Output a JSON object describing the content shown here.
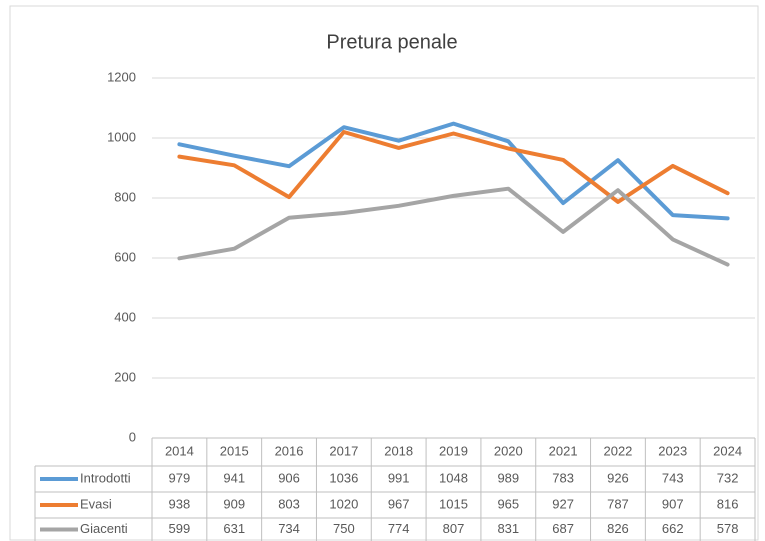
{
  "chart_data": {
    "type": "line",
    "title": "Pretura penale",
    "categories": [
      "2014",
      "2015",
      "2016",
      "2017",
      "2018",
      "2019",
      "2020",
      "2021",
      "2022",
      "2023",
      "2024"
    ],
    "series": [
      {
        "name": "Introdotti",
        "color": "#5b9bd5",
        "values": [
          979,
          941,
          906,
          1036,
          991,
          1048,
          989,
          783,
          926,
          743,
          732
        ]
      },
      {
        "name": "Evasi",
        "color": "#ed7d31",
        "values": [
          938,
          909,
          803,
          1020,
          967,
          1015,
          965,
          927,
          787,
          907,
          816
        ]
      },
      {
        "name": "Giacenti",
        "color": "#a5a5a5",
        "values": [
          599,
          631,
          734,
          750,
          774,
          807,
          831,
          687,
          826,
          662,
          578
        ]
      }
    ],
    "ylim": [
      0,
      1200
    ],
    "yticks": [
      0,
      200,
      400,
      600,
      800,
      1000,
      1200
    ],
    "grid": true
  }
}
